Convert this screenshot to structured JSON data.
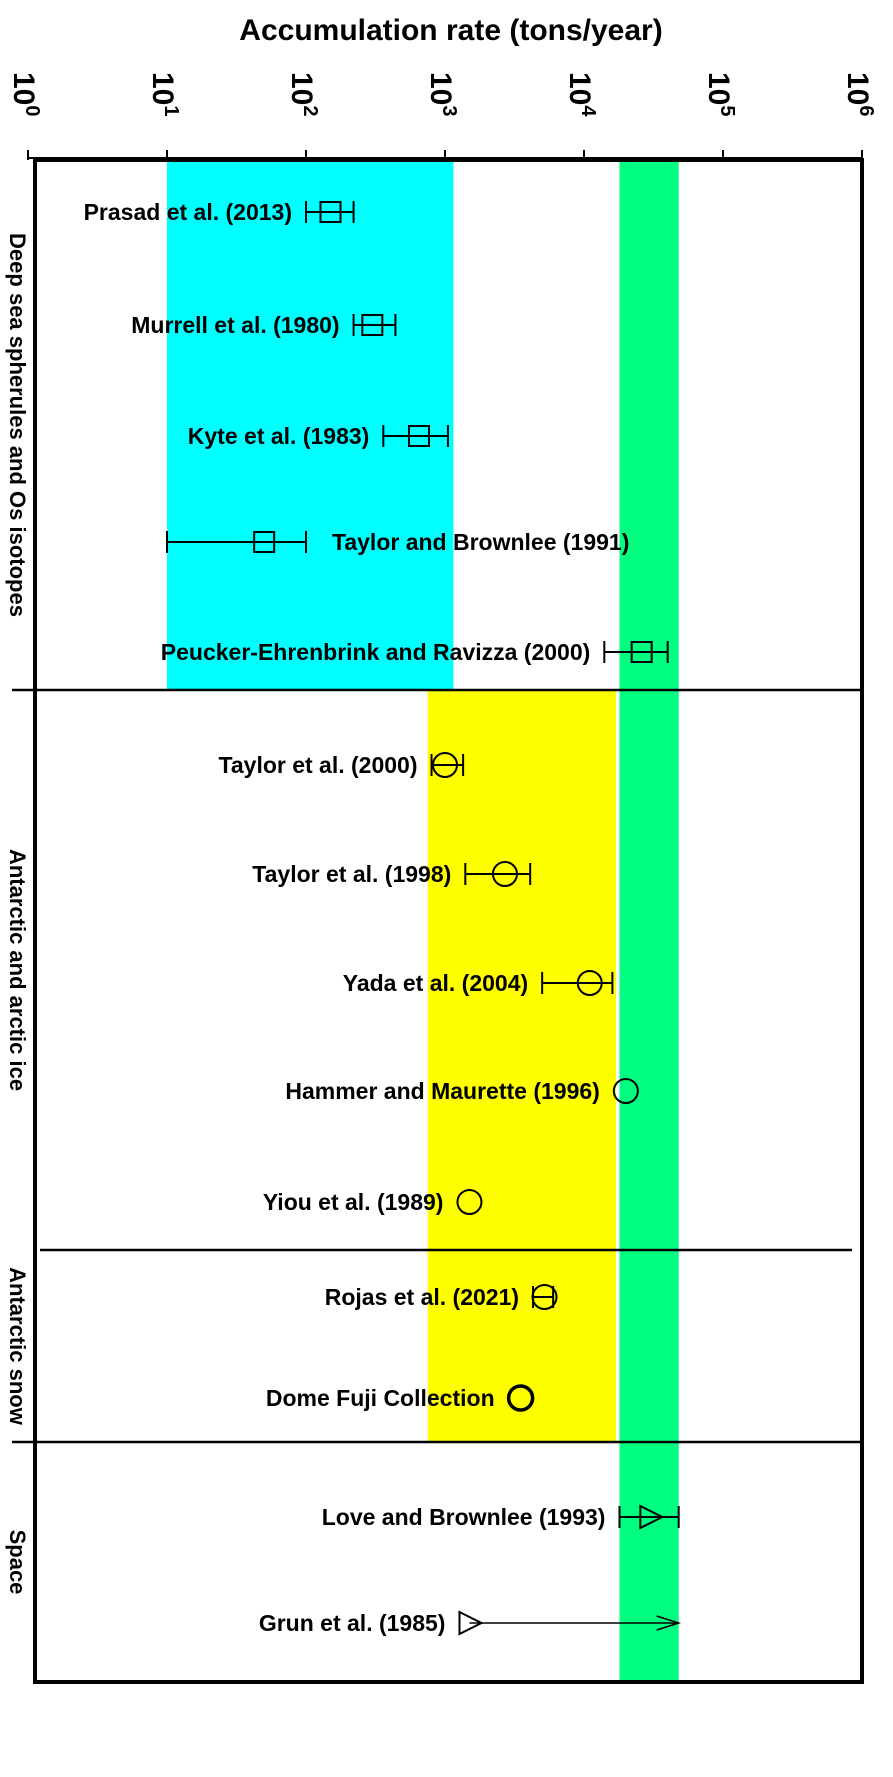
{
  "chart_data": {
    "type": "scatter",
    "title": "Accumulation rate (tons/year)",
    "xscale": "log",
    "xlim": [
      1,
      1000000
    ],
    "x_ticks": [
      {
        "value": 1,
        "base": "10",
        "exp": "0"
      },
      {
        "value": 10,
        "base": "10",
        "exp": "1"
      },
      {
        "value": 100,
        "base": "10",
        "exp": "2"
      },
      {
        "value": 1000,
        "base": "10",
        "exp": "3"
      },
      {
        "value": 10000,
        "base": "10",
        "exp": "4"
      },
      {
        "value": 100000,
        "base": "10",
        "exp": "5"
      },
      {
        "value": 1000000,
        "base": "10",
        "exp": "6"
      }
    ],
    "grid": false,
    "bands": [
      {
        "color": "#00ffff",
        "x_from": 10,
        "x_to": 1150,
        "group": "Deep sea spherules and Os isotopes"
      },
      {
        "color": "#ffff00",
        "x_from": 750,
        "x_to": 17000,
        "groups": [
          "Antarctic and arctic ice",
          "Antarctic snow"
        ]
      },
      {
        "color": "#00ff80",
        "x_from": 18000,
        "x_to": 48000,
        "group": "all"
      }
    ],
    "groups": [
      {
        "label": "Deep sea spherules and Os isotopes",
        "points": [
          {
            "label": "Prasad et al. (2013)",
            "marker": "square",
            "x": 150,
            "x_min": 100,
            "x_max": 220,
            "label_side": "left"
          },
          {
            "label": "Murrell et al. (1980)",
            "marker": "square",
            "x": 300,
            "x_min": 220,
            "x_max": 440,
            "label_side": "left"
          },
          {
            "label": "Kyte et al. (1983)",
            "marker": "square",
            "x": 650,
            "x_min": 360,
            "x_max": 1050,
            "label_side": "left"
          },
          {
            "label": "Taylor and Brownlee (1991)",
            "marker": "square",
            "x": 50,
            "x_min": 10,
            "x_max": 100,
            "label_side": "right"
          },
          {
            "label": "Peucker-Ehrenbrink and Ravizza  (2000)",
            "marker": "square",
            "x": 26000,
            "x_min": 14000,
            "x_max": 40000,
            "label_side": "left"
          }
        ]
      },
      {
        "label": "Antarctic and arctic ice",
        "points": [
          {
            "label": "Taylor et al. (2000)",
            "marker": "circle",
            "x": 1000,
            "x_min": 800,
            "x_max": 1350,
            "label_side": "left"
          },
          {
            "label": "Taylor et al. (1998)",
            "marker": "circle",
            "x": 2700,
            "x_min": 1400,
            "x_max": 4100,
            "label_side": "left"
          },
          {
            "label": "Yada et al. (2004)",
            "marker": "circle",
            "x": 11000,
            "x_min": 5000,
            "x_max": 16000,
            "label_side": "left"
          },
          {
            "label": "Hammer and Maurette (1996)",
            "marker": "circle",
            "x": 20000,
            "label_side": "left"
          },
          {
            "label": "Yiou et al. (1989)",
            "marker": "circle",
            "x": 1500,
            "label_side": "left"
          }
        ]
      },
      {
        "label": "Antarctic snow",
        "points": [
          {
            "label": "Rojas et al. (2021)",
            "marker": "circle",
            "x": 5200,
            "x_min": 4300,
            "x_max": 6000,
            "label_side": "left"
          },
          {
            "label": "Dome Fuji Collection",
            "marker": "circle-bold",
            "x": 3500,
            "label_side": "left"
          }
        ]
      },
      {
        "label": "Space",
        "points": [
          {
            "label": "Love and Brownlee (1993)",
            "marker": "triangle-right",
            "x": 30000,
            "x_min": 18000,
            "x_max": 48000,
            "label_side": "left"
          },
          {
            "label": "Grun et al. (1985)",
            "marker": "triangle-right",
            "x": 1500,
            "arrow_to": 48000,
            "label_side": "left"
          }
        ]
      }
    ]
  }
}
